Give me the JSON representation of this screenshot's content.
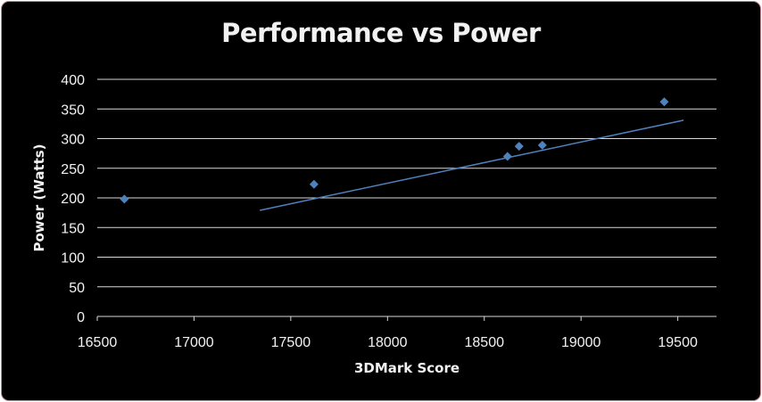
{
  "chart_data": {
    "type": "scatter",
    "title": "Performance vs Power",
    "xlabel": "3DMark Score",
    "ylabel": "Power (Watts)",
    "xlim": [
      16500,
      19700
    ],
    "ylim": [
      0,
      400
    ],
    "x_ticks": [
      16500,
      17000,
      17500,
      18000,
      18500,
      19000,
      19500
    ],
    "y_ticks": [
      0,
      50,
      100,
      150,
      200,
      250,
      300,
      350,
      400
    ],
    "grid": "horizontal",
    "points": [
      {
        "x": 16640,
        "y": 198
      },
      {
        "x": 17620,
        "y": 223
      },
      {
        "x": 18620,
        "y": 270
      },
      {
        "x": 18680,
        "y": 287
      },
      {
        "x": 18800,
        "y": 289
      },
      {
        "x": 19430,
        "y": 362
      }
    ],
    "trendline": {
      "type": "linear",
      "from": {
        "x": 17340,
        "y": 179
      },
      "to": {
        "x": 19530,
        "y": 331
      }
    },
    "colors": {
      "background": "#000000",
      "text": "#f2f2f2",
      "grid": "#d9d9d9",
      "marker": "#4f81bd",
      "trendline": "#4f81bd",
      "border": "#c8888c"
    }
  }
}
